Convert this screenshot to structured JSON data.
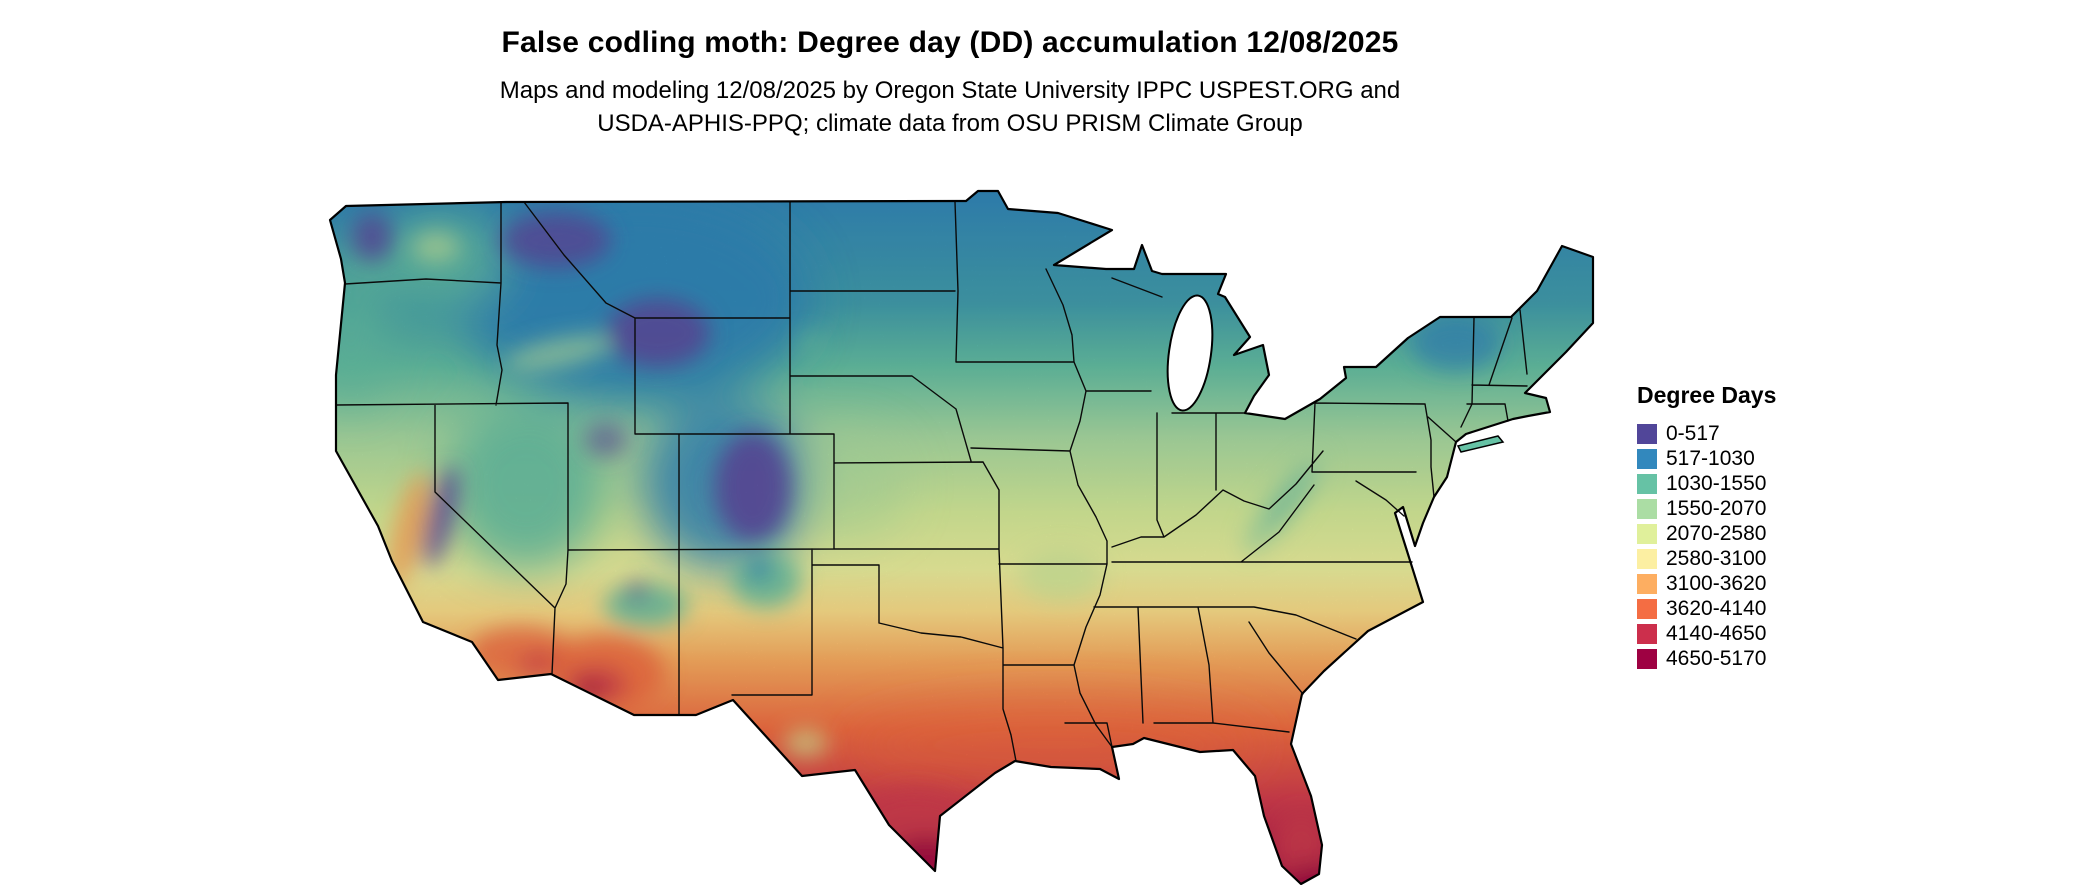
{
  "page": {
    "title": "False codling moth: Degree day (DD) accumulation 12/08/2025",
    "subtitle_line1": "Maps and modeling 12/08/2025 by Oregon State University IPPC USPEST.ORG and",
    "subtitle_line2": "USDA-APHIS-PPQ; climate data from OSU PRISM Climate Group"
  },
  "map": {
    "region": "Contiguous United States",
    "kind": "degree-day accumulation choropleth raster"
  },
  "legend": {
    "title": "Degree Days",
    "entries": [
      {
        "label": "0-517",
        "color": "#514699"
      },
      {
        "label": "517-1030",
        "color": "#3288bd"
      },
      {
        "label": "1030-1550",
        "color": "#66c2a5"
      },
      {
        "label": "1550-2070",
        "color": "#abdda4"
      },
      {
        "label": "2070-2580",
        "color": "#e0f09b"
      },
      {
        "label": "2580-3100",
        "color": "#fcefa2"
      },
      {
        "label": "3100-3620",
        "color": "#fdae61"
      },
      {
        "label": "3620-4140",
        "color": "#f46d43"
      },
      {
        "label": "4140-4650",
        "color": "#cc2f4c"
      },
      {
        "label": "4650-5170",
        "color": "#9e0142"
      }
    ]
  }
}
